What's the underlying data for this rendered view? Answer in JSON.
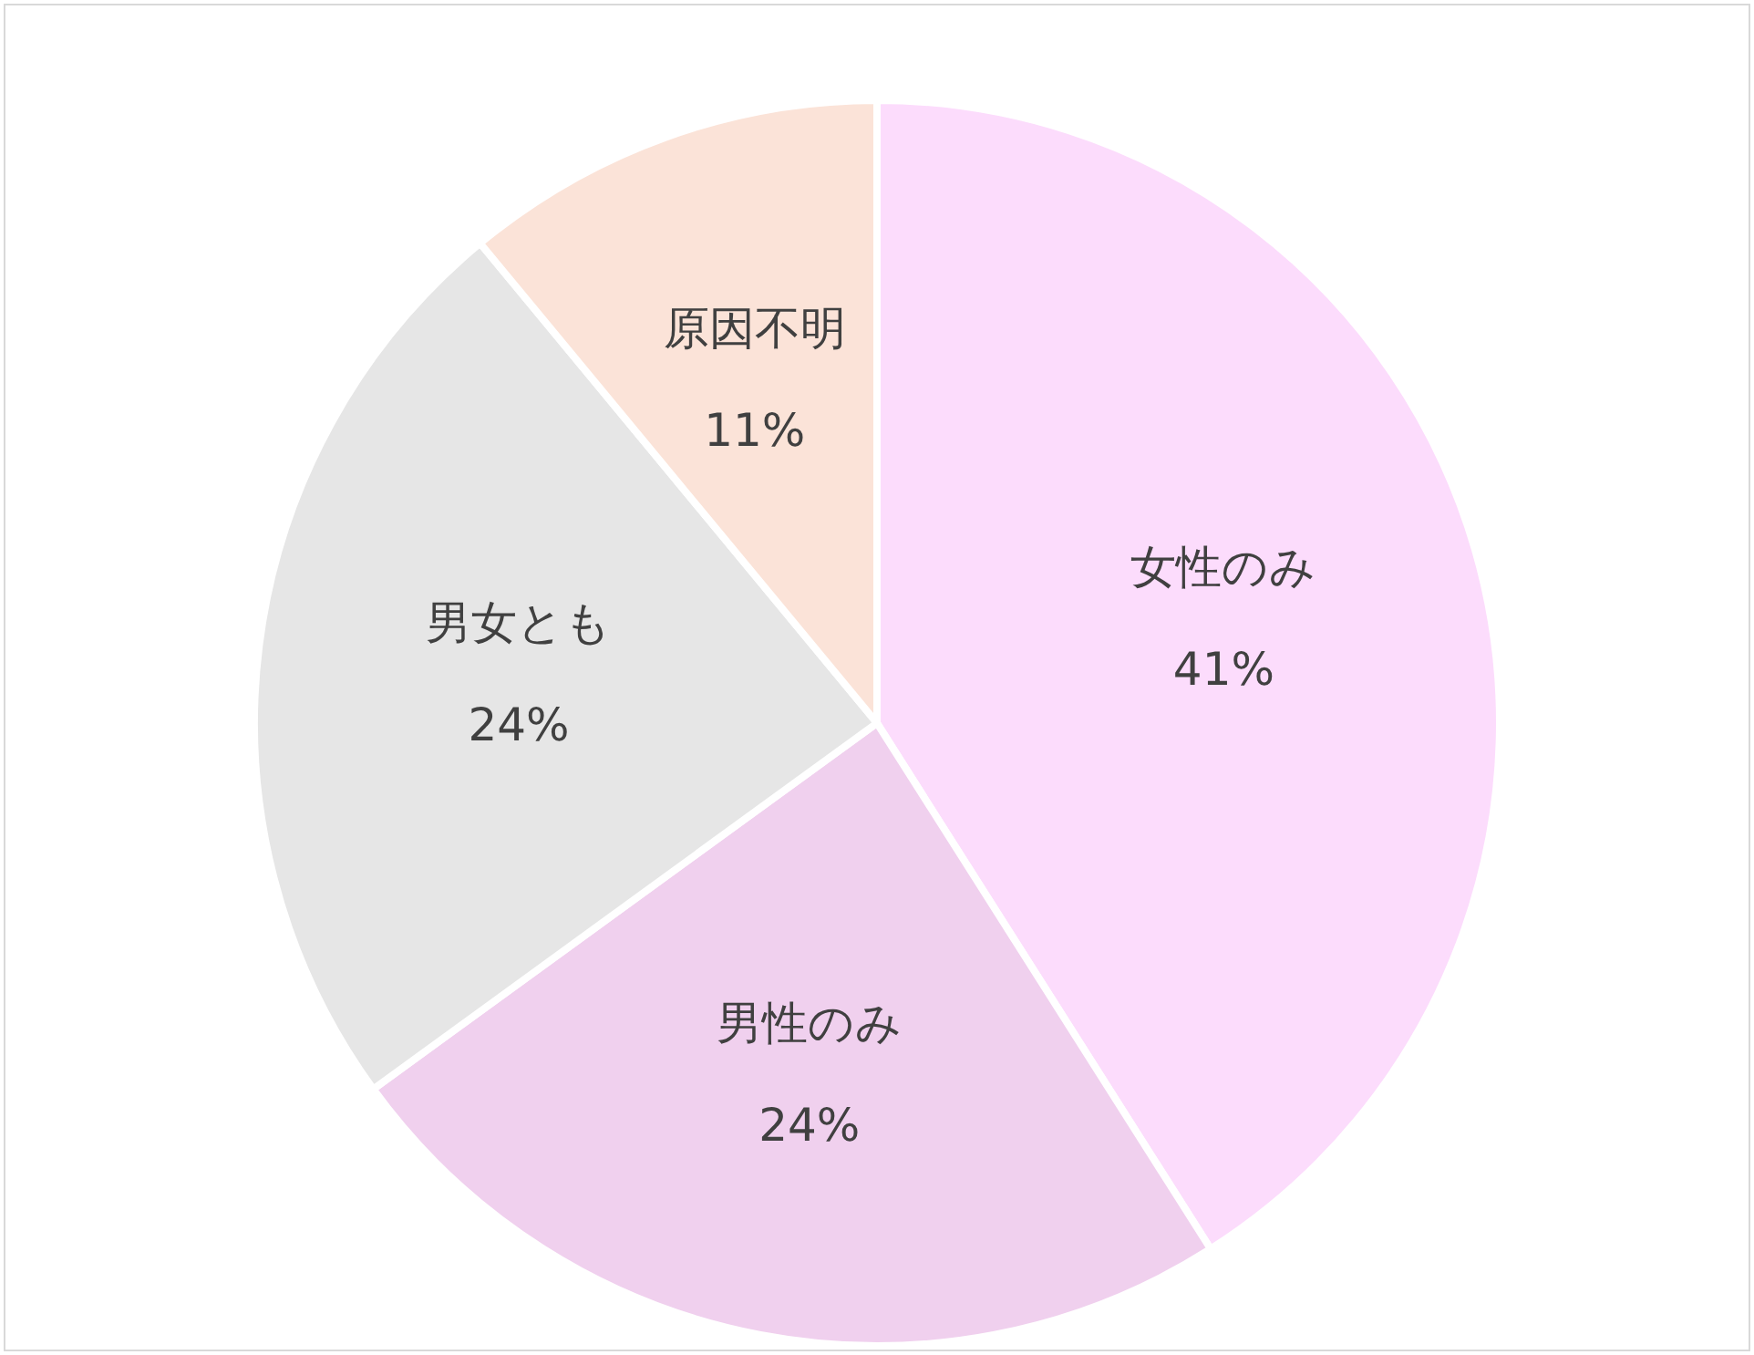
{
  "chart_data": {
    "type": "pie",
    "categories": [
      "女性のみ",
      "男性のみ",
      "男女とも",
      "原因不明"
    ],
    "values": [
      41,
      24,
      24,
      11
    ],
    "value_labels": [
      "41%",
      "24%",
      "24%",
      "11%"
    ],
    "colors": [
      "#fcdcfc",
      "#f0d0ee",
      "#e6e6e6",
      "#fbe3d8"
    ],
    "legend": false
  }
}
